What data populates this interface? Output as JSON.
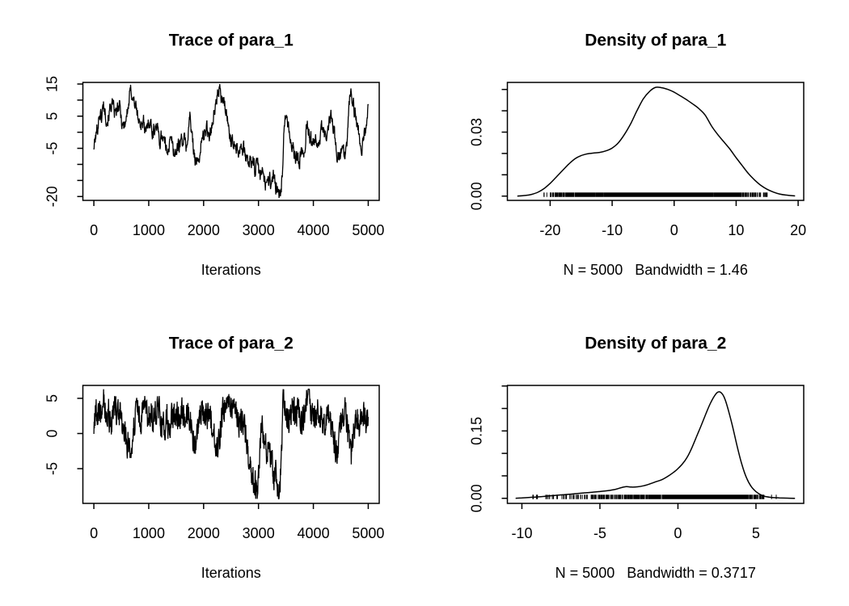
{
  "figure": {
    "background": "#ffffff",
    "stroke_color": "#000000"
  },
  "chart_data": [
    {
      "id": "trace-para-1",
      "type": "line",
      "kind": "trace",
      "title": "Trace of para_1",
      "xlabel": "Iterations",
      "xlim": [
        -200,
        5200
      ],
      "ylim": [
        -21.2,
        15.5
      ],
      "grid": false,
      "x_ticks": [
        {
          "v": 0,
          "t": "0"
        },
        {
          "v": 1000,
          "t": "1000"
        },
        {
          "v": 2000,
          "t": "2000"
        },
        {
          "v": 3000,
          "t": "3000"
        },
        {
          "v": 4000,
          "t": "4000"
        },
        {
          "v": 5000,
          "t": "5000"
        }
      ],
      "y_ticks": [
        {
          "v": 15,
          "t": "15"
        },
        {
          "v": 10
        },
        {
          "v": 5,
          "t": "5"
        },
        {
          "v": 0
        },
        {
          "v": -5,
          "t": "-5"
        },
        {
          "v": -10
        },
        {
          "v": -15
        },
        {
          "v": -20,
          "t": "-20"
        }
      ],
      "series": {
        "n_iterations": 5000,
        "range": [
          -21,
          15
        ],
        "x": [
          0,
          40,
          80,
          103,
          140,
          176,
          210,
          250,
          290,
          323,
          360,
          396,
          430,
          469,
          505,
          542,
          591,
          625,
          650,
          679,
          720,
          762,
          800,
          836,
          875,
          909,
          934,
          970,
          1007,
          1045,
          1080,
          1129,
          1165,
          1202,
          1251,
          1290,
          1324,
          1360,
          1400,
          1422,
          1471,
          1510,
          1544,
          1580,
          1617,
          1655,
          1690,
          1720,
          1750,
          1790,
          1837,
          1886,
          1920,
          1959,
          2000,
          2033,
          2070,
          2106,
          2140,
          2180,
          2230,
          2277,
          2326,
          2360,
          2400,
          2440,
          2490,
          2546,
          2566,
          2639,
          2688,
          2761,
          2834,
          2883,
          2932,
          2981,
          3030,
          3079,
          3128,
          3177,
          3226,
          3275,
          3324,
          3348,
          3373,
          3422,
          3446,
          3470,
          3510,
          3550,
          3600,
          3650,
          3700,
          3739,
          3790,
          3840,
          3886,
          3935,
          3984,
          4033,
          4070,
          4106,
          4155,
          4190,
          4228,
          4277,
          4326,
          4375,
          4424,
          4472,
          4521,
          4570,
          4619,
          4645,
          4668,
          4717,
          4766,
          4815,
          4839,
          4888,
          4937,
          4986,
          5000
        ],
        "y": [
          -4.5,
          -1,
          3,
          6.4,
          4.5,
          8.9,
          6,
          3.9,
          7,
          9.3,
          6.5,
          5.6,
          6.8,
          7.7,
          4,
          1.8,
          4.7,
          7.5,
          10.5,
          13.5,
          10.5,
          8.1,
          5,
          2.2,
          3.2,
          3.5,
          -1.9,
          1.5,
          4.3,
          2,
          -0.3,
          2.7,
          0.5,
          -2.8,
          -0.3,
          -3.5,
          -5.3,
          -4.2,
          -3,
          -2.8,
          -6.9,
          -5.5,
          -4,
          -3,
          -1.9,
          -3.2,
          -4.4,
          0,
          5,
          -2,
          -6.9,
          -10.3,
          -7.5,
          -3.6,
          -1,
          1.4,
          0.5,
          -0.3,
          2,
          4.8,
          9,
          13.9,
          10.2,
          9.2,
          7.3,
          3,
          -1.5,
          -4.5,
          -2.3,
          -5.7,
          -3.2,
          -7.3,
          -9.8,
          -8.2,
          -12.3,
          -9,
          -14.4,
          -11.5,
          -16.5,
          -13.6,
          -15.7,
          -13.2,
          -17.8,
          -19.4,
          -20.8,
          -16.5,
          -9,
          4.8,
          3,
          1,
          -3.5,
          -6.5,
          -8.5,
          -9,
          -6,
          -5,
          3,
          -1.5,
          -4,
          -0.7,
          -2,
          -3.2,
          0.6,
          -0.5,
          -1.9,
          1.8,
          5.2,
          0.6,
          -5.7,
          -8.2,
          -5.2,
          -8.2,
          -1.5,
          6,
          13.5,
          9.3,
          5.2,
          1.8,
          -2.8,
          -5.7,
          -0.7,
          5.2,
          8.5
        ],
        "render": {
          "points": 1000,
          "noise_amp": 2.0,
          "noise_ar": 0.55,
          "seed": 101
        }
      }
    },
    {
      "id": "density-para-1",
      "type": "line",
      "kind": "density",
      "title": "Density of para_1",
      "subtitle": "N = 5000   Bandwidth = 1.46",
      "stats": {
        "n": 5000,
        "bandwidth": 1.46
      },
      "xlim": [
        -26.9,
        20.9
      ],
      "ylim": [
        -0.002,
        0.0533
      ],
      "grid": false,
      "x_ticks": [
        {
          "v": -20,
          "t": "-20"
        },
        {
          "v": -10,
          "t": "-10"
        },
        {
          "v": 0,
          "t": "0"
        },
        {
          "v": 10,
          "t": "10"
        },
        {
          "v": 20,
          "t": "20"
        }
      ],
      "y_ticks": [
        {
          "v": 0,
          "t": "0.00"
        },
        {
          "v": 0.01
        },
        {
          "v": 0.02
        },
        {
          "v": 0.03,
          "t": "0.03"
        },
        {
          "v": 0.04
        },
        {
          "v": 0.05
        }
      ],
      "curve": {
        "x": [
          -25.3,
          -24,
          -23,
          -22,
          -21,
          -20,
          -19,
          -18,
          -17,
          -16,
          -15,
          -14,
          -13,
          -12,
          -11,
          -10,
          -9,
          -8,
          -7,
          -6,
          -5,
          -4,
          -3,
          -2,
          -1,
          0,
          1,
          2,
          3,
          4,
          5,
          6,
          7,
          8,
          9,
          10,
          11,
          12,
          13,
          14,
          15,
          16,
          17,
          18,
          19.5
        ],
        "y": [
          0,
          0.0003,
          0.0008,
          0.0018,
          0.0035,
          0.006,
          0.009,
          0.012,
          0.015,
          0.0175,
          0.019,
          0.0198,
          0.0202,
          0.0205,
          0.0212,
          0.0225,
          0.025,
          0.029,
          0.034,
          0.04,
          0.0455,
          0.049,
          0.051,
          0.0508,
          0.05,
          0.0487,
          0.047,
          0.0452,
          0.0432,
          0.041,
          0.038,
          0.033,
          0.029,
          0.0255,
          0.022,
          0.018,
          0.0142,
          0.0105,
          0.0075,
          0.005,
          0.0032,
          0.0019,
          0.001,
          0.0005,
          0.0001
        ]
      },
      "rug": {
        "min": -21,
        "max": 15,
        "render": {
          "points": 1600,
          "seed": 202
        }
      }
    },
    {
      "id": "trace-para-2",
      "type": "line",
      "kind": "trace",
      "title": "Trace of para_2",
      "xlabel": "Iterations",
      "xlim": [
        -200,
        5200
      ],
      "ylim": [
        -9.94,
        6.84
      ],
      "grid": false,
      "x_ticks": [
        {
          "v": 0,
          "t": "0"
        },
        {
          "v": 1000,
          "t": "1000"
        },
        {
          "v": 2000,
          "t": "2000"
        },
        {
          "v": 3000,
          "t": "3000"
        },
        {
          "v": 4000,
          "t": "4000"
        },
        {
          "v": 5000,
          "t": "5000"
        }
      ],
      "y_ticks": [
        {
          "v": 5,
          "t": "5"
        },
        {
          "v": 0,
          "t": "0"
        },
        {
          "v": -5,
          "t": "-5"
        }
      ],
      "series": {
        "n_iterations": 5000,
        "range": [
          -9.3,
          6.3
        ],
        "x": [
          0,
          30,
          80,
          130,
          176,
          220,
          270,
          320,
          370,
          420,
          470,
          520,
          570,
          620,
          664,
          700,
          740,
          800,
          860,
          920,
          980,
          1040,
          1100,
          1160,
          1220,
          1280,
          1340,
          1374,
          1420,
          1480,
          1540,
          1600,
          1660,
          1720,
          1780,
          1840,
          1880,
          1940,
          2000,
          2060,
          2120,
          2180,
          2253,
          2300,
          2360,
          2420,
          2473,
          2520,
          2580,
          2640,
          2700,
          2742,
          2790,
          2840,
          2890,
          2937,
          2986,
          3030,
          3060,
          3100,
          3150,
          3200,
          3240,
          3279,
          3320,
          3376,
          3410,
          3450,
          3500,
          3560,
          3620,
          3680,
          3740,
          3800,
          3860,
          3914,
          3970,
          4030,
          4090,
          4150,
          4210,
          4270,
          4330,
          4380,
          4428,
          4470,
          4520,
          4580,
          4640,
          4697,
          4740,
          4790,
          4850,
          4900,
          4950,
          5000
        ],
        "y": [
          0.5,
          3,
          2.5,
          3.5,
          6.3,
          2,
          3,
          1,
          3.5,
          2.5,
          3,
          1.5,
          0,
          -1.5,
          -3.3,
          -1,
          2,
          3,
          2,
          3.5,
          2.5,
          3,
          2,
          3.8,
          2,
          1,
          2.5,
          -0.5,
          2,
          3,
          2,
          3.5,
          2.5,
          3,
          1.5,
          -2.5,
          0.5,
          2.5,
          3.5,
          2,
          3,
          0.5,
          -2.6,
          0.5,
          3,
          4.5,
          5.8,
          3.5,
          2.5,
          1.5,
          1.5,
          1.3,
          -2,
          -4.5,
          -6,
          -7.2,
          -8.4,
          -3,
          2.3,
          -1,
          -3,
          -1.8,
          -4,
          -7.2,
          -5,
          -9.3,
          -4,
          5.2,
          3,
          2,
          3.5,
          2.5,
          3,
          2,
          4,
          5.8,
          3,
          2,
          3.5,
          2.5,
          1,
          2.5,
          0.5,
          -1.5,
          -3.3,
          0,
          2.5,
          3.5,
          -1,
          -3.5,
          0.5,
          2.5,
          1,
          3,
          2,
          2.2
        ],
        "render": {
          "points": 1100,
          "noise_amp": 1.9,
          "noise_ar": 0.35,
          "seed": 303
        }
      }
    },
    {
      "id": "density-para-2",
      "type": "line",
      "kind": "density",
      "title": "Density of para_2",
      "subtitle": "N = 5000   Bandwidth = 0.3717",
      "stats": {
        "n": 5000,
        "bandwidth": 0.3717
      },
      "xlim": [
        -10.93,
        8.06
      ],
      "ylim": [
        -0.0113,
        0.2513
      ],
      "grid": false,
      "x_ticks": [
        {
          "v": -10,
          "t": "-10"
        },
        {
          "v": -5,
          "t": "-5"
        },
        {
          "v": 0,
          "t": "0"
        },
        {
          "v": 5,
          "t": "5"
        }
      ],
      "y_ticks": [
        {
          "v": 0,
          "t": "0.00"
        },
        {
          "v": 0.05
        },
        {
          "v": 0.1
        },
        {
          "v": 0.15,
          "t": "0.15"
        },
        {
          "v": 0.2
        },
        {
          "v": 0.25
        }
      ],
      "curve": {
        "x": [
          -10.4,
          -10,
          -9.5,
          -9,
          -8.5,
          -8,
          -7.5,
          -7,
          -6.5,
          -6,
          -5.5,
          -5,
          -4.5,
          -4,
          -3.6,
          -3.3,
          -3,
          -2.6,
          -2.2,
          -1.8,
          -1.4,
          -1,
          -0.6,
          -0.2,
          0,
          0.3,
          0.6,
          0.9,
          1.2,
          1.5,
          1.8,
          2.1,
          2.4,
          2.6,
          2.8,
          3,
          3.2,
          3.5,
          3.8,
          4.1,
          4.4,
          4.7,
          5,
          5.3,
          5.6,
          6,
          6.5,
          7,
          7.5
        ],
        "y": [
          0,
          0.001,
          0.002,
          0.003,
          0.0045,
          0.006,
          0.0075,
          0.009,
          0.0105,
          0.012,
          0.0135,
          0.015,
          0.017,
          0.02,
          0.024,
          0.026,
          0.025,
          0.0255,
          0.028,
          0.032,
          0.037,
          0.042,
          0.05,
          0.06,
          0.066,
          0.077,
          0.092,
          0.113,
          0.138,
          0.163,
          0.189,
          0.213,
          0.231,
          0.237,
          0.234,
          0.222,
          0.2,
          0.16,
          0.115,
          0.075,
          0.045,
          0.026,
          0.015,
          0.008,
          0.004,
          0.002,
          0.001,
          0.0004,
          0
        ]
      },
      "rug": {
        "min": -9.3,
        "max": 6.3,
        "render": {
          "points": 1600,
          "seed": 404
        }
      }
    }
  ]
}
